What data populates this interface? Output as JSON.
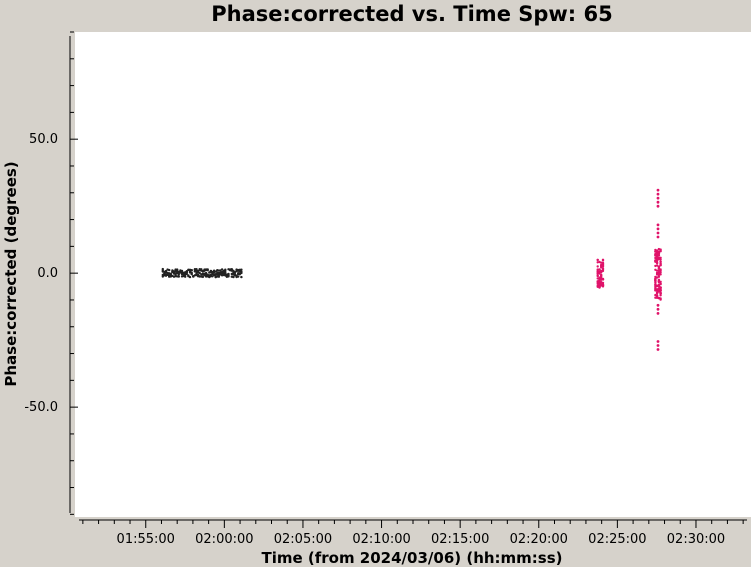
{
  "chart_data": {
    "type": "scatter",
    "title": "Phase:corrected vs. Time Spw: 65",
    "xlabel": "Time (from 2024/03/06) (hh:mm:ss)",
    "ylabel": "Phase:corrected (degrees)",
    "xlim": [
      "01:50:30",
      "02:33:30"
    ],
    "ylim": [
      -91,
      90
    ],
    "x_ticks": [
      "01:55:00",
      "02:00:00",
      "02:05:00",
      "02:10:00",
      "02:15:00",
      "02:20:00",
      "02:25:00",
      "02:30:00"
    ],
    "y_ticks": [
      {
        "value": 50,
        "label": "50.0"
      },
      {
        "value": 0,
        "label": "0.0"
      },
      {
        "value": -50,
        "label": "-50.0"
      }
    ],
    "grid": false,
    "series": [
      {
        "color": "#222222",
        "clusters": [
          {
            "x_start": "01:56:05",
            "x_end": "02:01:05",
            "y_min": -1.5,
            "y_max": 1.5
          }
        ],
        "outliers": []
      },
      {
        "color": "#e0136a",
        "clusters": [
          {
            "x_start": "02:23:45",
            "x_end": "02:24:05",
            "y_min": -5.5,
            "y_max": 5.0
          },
          {
            "x_start": "02:27:25",
            "x_end": "02:27:45",
            "y_min": -10.0,
            "y_max": 9.0
          }
        ],
        "outliers": [
          {
            "x": "02:27:35",
            "y": 31
          },
          {
            "x": "02:27:35",
            "y": 29.5
          },
          {
            "x": "02:27:35",
            "y": 28
          },
          {
            "x": "02:27:35",
            "y": 26.5
          },
          {
            "x": "02:27:35",
            "y": 25
          },
          {
            "x": "02:27:35",
            "y": 18
          },
          {
            "x": "02:27:35",
            "y": 16.5
          },
          {
            "x": "02:27:35",
            "y": 15
          },
          {
            "x": "02:27:35",
            "y": 13.5
          },
          {
            "x": "02:27:35",
            "y": -12
          },
          {
            "x": "02:27:35",
            "y": -13.5
          },
          {
            "x": "02:27:35",
            "y": -15
          },
          {
            "x": "02:27:35",
            "y": -25.5
          },
          {
            "x": "02:27:35",
            "y": -27
          },
          {
            "x": "02:27:35",
            "y": -28.5
          }
        ]
      }
    ]
  }
}
